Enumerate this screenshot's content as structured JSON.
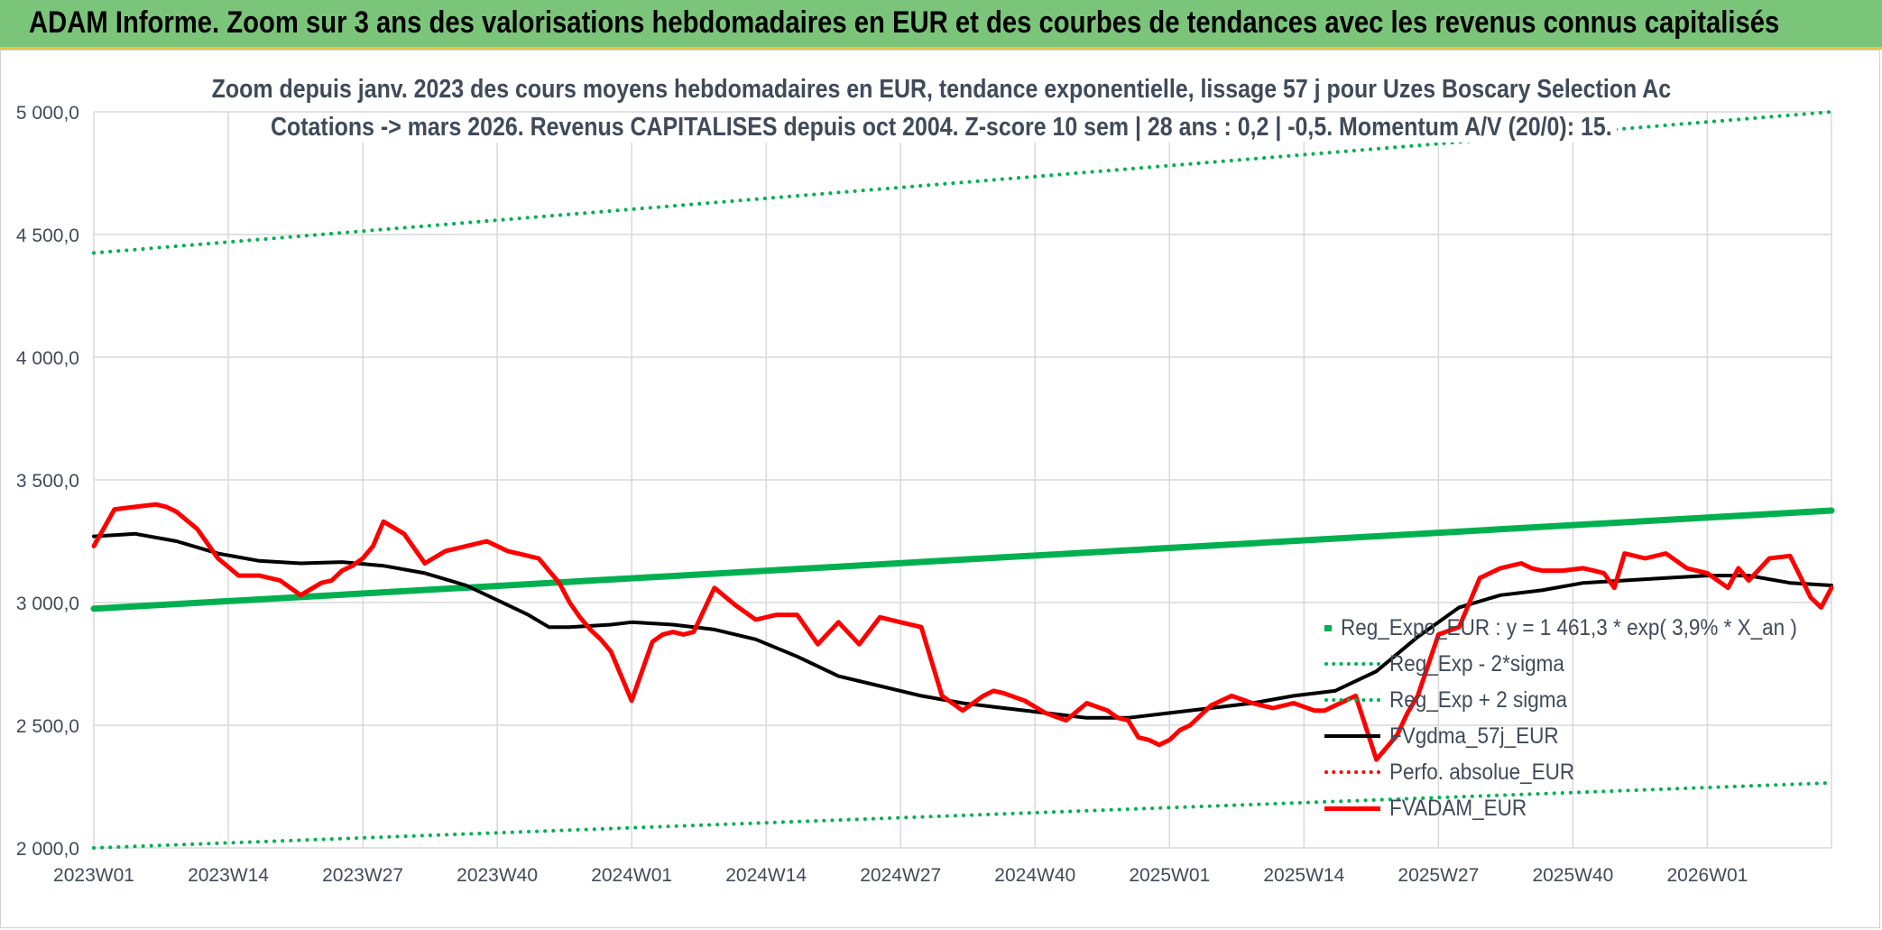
{
  "banner": {
    "title": "ADAM Informe. Zoom sur 3 ans des valorisations hebdomadaires en EUR et des courbes de tendances avec les revenus connus capitalisés"
  },
  "chart_data": {
    "type": "line",
    "title_line1": "Zoom depuis janv. 2023 des cours moyens hebdomadaires en EUR, tendance exponentielle, lissage 57 j pour Uzes Boscary Selection Ac",
    "title_line2": "Cotations -> mars 2026. Revenus CAPITALISES depuis oct 2004. Z-score 10 sem | 28 ans : 0,2 | -0,5. Momentum A/V (20/0): 15.",
    "xlabel": "",
    "ylabel": "",
    "ylim": [
      2000,
      5000
    ],
    "yticks": [
      2000,
      2500,
      3000,
      3500,
      4000,
      4500,
      5000
    ],
    "ytick_labels": [
      "2 000,0",
      "2 500,0",
      "3 000,0",
      "3 500,0",
      "4 000,0",
      "4 500,0",
      "5 000,0"
    ],
    "xlim": [
      0,
      168
    ],
    "xticks": [
      0,
      13,
      26,
      39,
      52,
      65,
      78,
      91,
      104,
      117,
      130,
      143,
      156
    ],
    "xtick_labels": [
      "2023W01",
      "2023W14",
      "2023W27",
      "2023W40",
      "2024W01",
      "2024W14",
      "2024W27",
      "2024W40",
      "2025W01",
      "2025W14",
      "2025W27",
      "2025W40",
      "2026W01"
    ],
    "grid": true,
    "legend_position": "right",
    "series": [
      {
        "name": "Reg_Expo_EUR : y = 1 461,3 * exp( 3,9% *  X_an )",
        "color": "#00b050",
        "style": "solid",
        "width": 7,
        "x": [
          0,
          168
        ],
        "y": [
          2975,
          3375
        ]
      },
      {
        "name": "Reg_Exp - 2*sigma",
        "color": "#00b050",
        "style": "dotted",
        "width": 4,
        "x": [
          0,
          168
        ],
        "y": [
          2000,
          2265
        ]
      },
      {
        "name": "Reg_Exp + 2 sigma",
        "color": "#00b050",
        "style": "dotted",
        "width": 4,
        "x": [
          0,
          168
        ],
        "y": [
          4425,
          5000
        ]
      },
      {
        "name": "FVgdma_57j_EUR",
        "color": "#000000",
        "style": "solid",
        "width": 4,
        "x": [
          0,
          4,
          8,
          12,
          16,
          20,
          24,
          28,
          32,
          36,
          40,
          42,
          44,
          46,
          50,
          52,
          56,
          60,
          64,
          68,
          72,
          76,
          80,
          84,
          88,
          92,
          96,
          100,
          104,
          108,
          112,
          116,
          120,
          124,
          128,
          132,
          136,
          140,
          144,
          148,
          152,
          156,
          160,
          164,
          168
        ],
        "y": [
          3270,
          3280,
          3250,
          3200,
          3170,
          3160,
          3165,
          3150,
          3120,
          3070,
          2990,
          2950,
          2900,
          2900,
          2910,
          2920,
          2910,
          2890,
          2850,
          2780,
          2700,
          2660,
          2620,
          2590,
          2570,
          2550,
          2530,
          2530,
          2550,
          2570,
          2590,
          2620,
          2640,
          2720,
          2860,
          2980,
          3030,
          3050,
          3080,
          3090,
          3100,
          3110,
          3110,
          3080,
          3070
        ]
      },
      {
        "name": "Perfo. absolue_EUR",
        "color": "#ff0000",
        "style": "dotted",
        "width": 4,
        "x": [],
        "y": []
      },
      {
        "name": "FVADAM_EUR",
        "color": "#ff0000",
        "style": "solid",
        "width": 5,
        "x": [
          0,
          2,
          4,
          6,
          7,
          8,
          10,
          12,
          14,
          16,
          18,
          20,
          22,
          23,
          24,
          25,
          26,
          27,
          28,
          30,
          32,
          34,
          35,
          36,
          38,
          40,
          41,
          42,
          43,
          44,
          45,
          46,
          47,
          48,
          49,
          50,
          52,
          54,
          55,
          56,
          57,
          58,
          60,
          62,
          64,
          66,
          68,
          70,
          72,
          74,
          76,
          78,
          80,
          82,
          84,
          86,
          87,
          88,
          90,
          92,
          94,
          96,
          98,
          99,
          100,
          101,
          102,
          103,
          104,
          105,
          106,
          108,
          110,
          112,
          114,
          116,
          118,
          119,
          120,
          121,
          122,
          124,
          126,
          127,
          128,
          130,
          132,
          134,
          136,
          138,
          139,
          140,
          142,
          144,
          145,
          146,
          147,
          148,
          150,
          152,
          154,
          156,
          158,
          159,
          160,
          162,
          164,
          166,
          167,
          168
        ],
        "y": [
          3230,
          3380,
          3390,
          3400,
          3390,
          3370,
          3300,
          3180,
          3110,
          3110,
          3090,
          3030,
          3080,
          3090,
          3130,
          3150,
          3180,
          3230,
          3330,
          3280,
          3160,
          3210,
          3220,
          3230,
          3250,
          3210,
          3200,
          3190,
          3180,
          3130,
          3080,
          3000,
          2940,
          2890,
          2850,
          2800,
          2600,
          2840,
          2870,
          2880,
          2870,
          2880,
          3060,
          2990,
          2930,
          2950,
          2950,
          2830,
          2920,
          2830,
          2940,
          2920,
          2900,
          2620,
          2560,
          2620,
          2640,
          2630,
          2600,
          2550,
          2520,
          2590,
          2560,
          2530,
          2520,
          2450,
          2440,
          2420,
          2440,
          2480,
          2500,
          2580,
          2620,
          2590,
          2570,
          2590,
          2560,
          2560,
          2580,
          2600,
          2620,
          2360,
          2460,
          2550,
          2620,
          2870,
          2900,
          3100,
          3140,
          3160,
          3140,
          3130,
          3130,
          3140,
          3130,
          3120,
          3060,
          3200,
          3180,
          3200,
          3140,
          3120,
          3060,
          3140,
          3090,
          3180,
          3190,
          3020,
          2980,
          3060
        ]
      }
    ]
  }
}
